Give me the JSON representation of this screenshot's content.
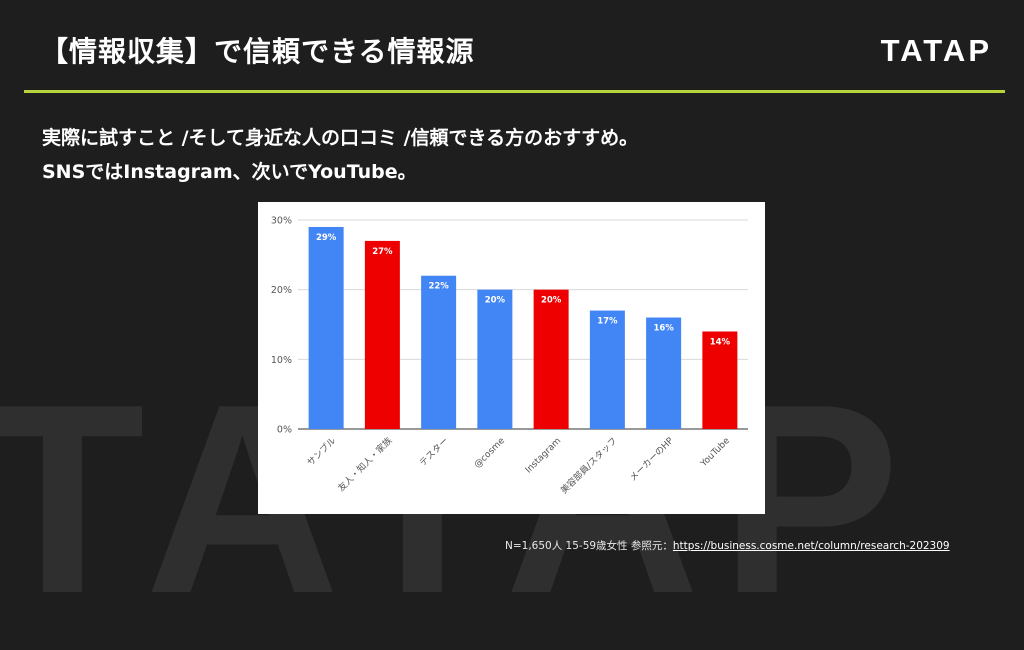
{
  "slide": {
    "title": "【情報収集】で信頼できる情報源",
    "logo": "TATAP",
    "watermark": "TATAP",
    "lead_line1": "実際に試すこと /そして身近な人の口コミ /信頼できる方のおすすめ。",
    "lead_line2": "SNSではInstagram、次いでYouTube。",
    "source_prefix": "N=1,650人 15-59歳女性 参照元：",
    "source_link": "https://business.cosme.net/column/research-202309"
  },
  "colors": {
    "background": "#1e1e1e",
    "accent_line": "#b7d43c",
    "bar_blue": "#4285f4",
    "bar_red": "#ee0000"
  },
  "chart_data": {
    "type": "bar",
    "categories": [
      "サンプル",
      "友人・知人・家族",
      "テスター",
      "@cosme",
      "Instagram",
      "美容部員/スタッフ",
      "メーカーのHP",
      "YouTube"
    ],
    "values": [
      29,
      27,
      22,
      20,
      20,
      17,
      16,
      14
    ],
    "data_labels": [
      "29%",
      "27%",
      "22%",
      "20%",
      "20%",
      "17%",
      "16%",
      "14%"
    ],
    "highlighted": [
      false,
      true,
      false,
      false,
      true,
      false,
      false,
      true
    ],
    "y_ticks": [
      "0%",
      "10%",
      "20%",
      "30%"
    ],
    "ylim": [
      0,
      30
    ],
    "grid": true,
    "title": "",
    "xlabel": "",
    "ylabel": ""
  }
}
